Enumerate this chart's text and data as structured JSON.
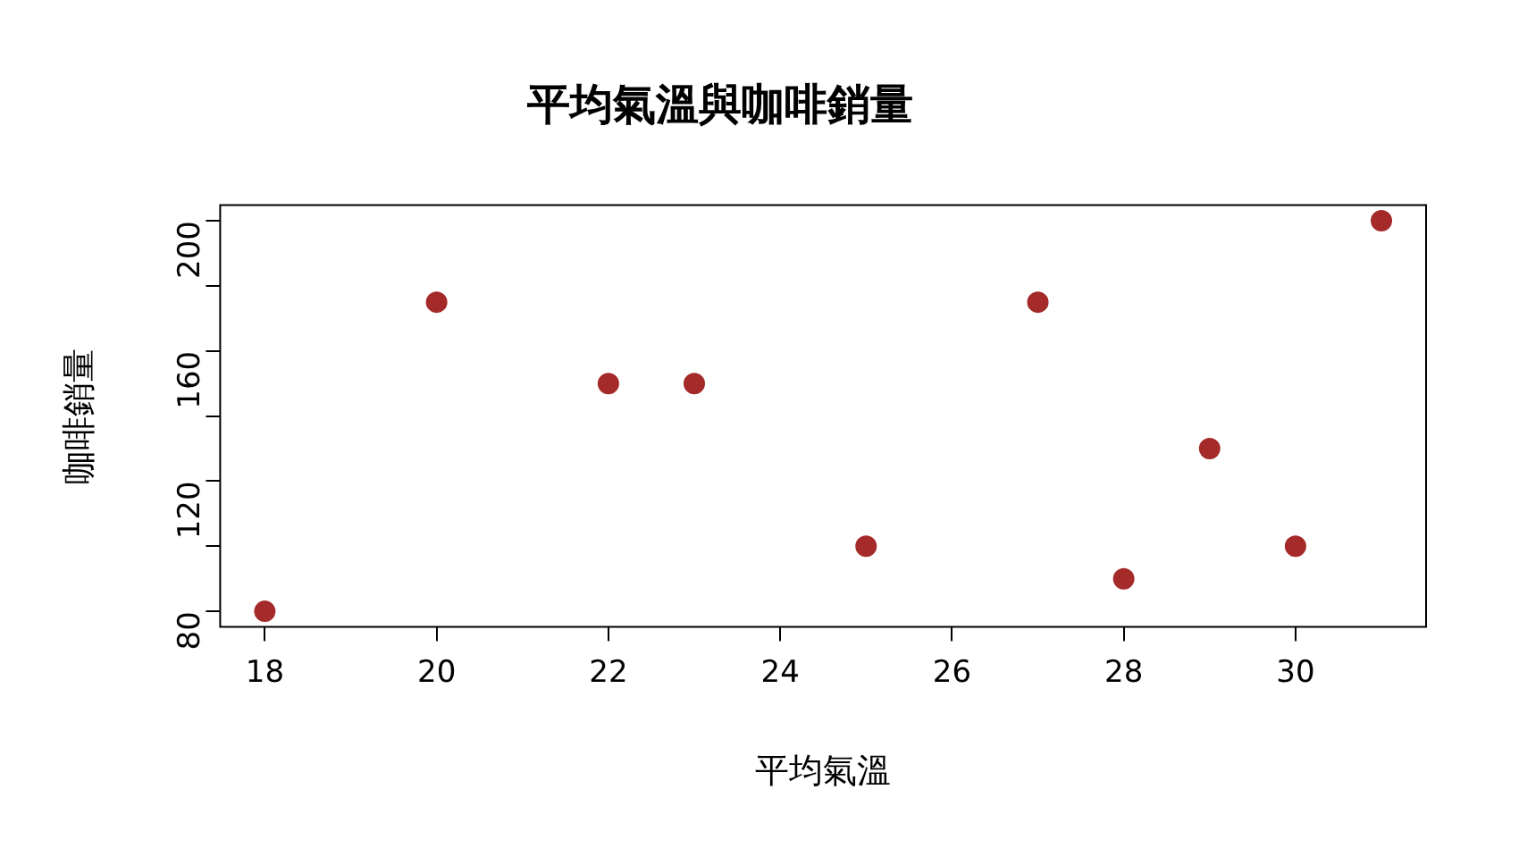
{
  "chart_data": {
    "type": "scatter",
    "title": "平均氣溫與咖啡銷量",
    "xlabel": "平均氣溫",
    "ylabel": "咖啡銷量",
    "x": [
      18,
      20,
      22,
      23,
      25,
      27,
      28,
      29,
      30,
      31
    ],
    "series": [
      {
        "color": "#a52a2a",
        "values": [
          80,
          175,
          150,
          150,
          100,
          175,
          90,
          130,
          100,
          200
        ]
      }
    ],
    "xlim": [
      17.48,
      31.52
    ],
    "xticks": [
      18,
      20,
      22,
      24,
      26,
      28,
      30
    ],
    "ylim": [
      75.2,
      204.8
    ],
    "yticks": [
      80,
      {
        "value": 100,
        "label": null
      },
      120,
      {
        "value": 140,
        "label": null
      },
      160,
      {
        "value": 180,
        "label": null
      },
      200
    ],
    "marker": "circle",
    "grid": false,
    "legend": false
  }
}
